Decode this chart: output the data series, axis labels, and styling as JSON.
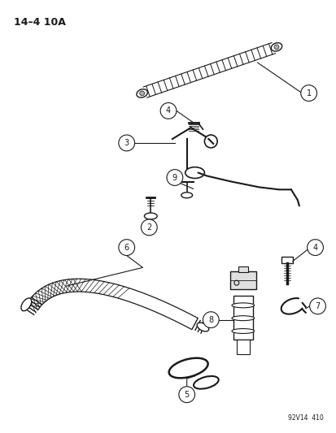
{
  "title_label": "14–4 10A",
  "watermark": "92V14  410",
  "bg_color": "#ffffff",
  "fg_color": "#1a1a1a",
  "fig_width": 4.14,
  "fig_height": 5.33,
  "dpi": 100
}
